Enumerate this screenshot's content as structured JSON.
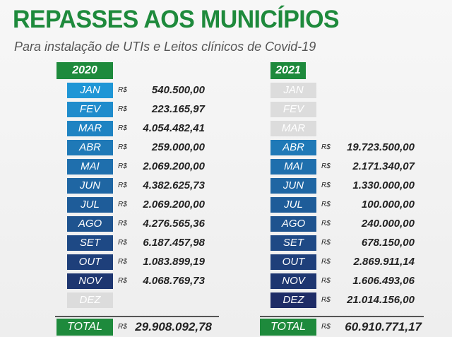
{
  "header": {
    "title": "REPASSES AOS MUNICÍPIOS",
    "subtitle": "Para instalação de UTIs e Leitos clínicos de Covid-19"
  },
  "currency": "R$",
  "tables": [
    {
      "year": "2020",
      "rows": [
        {
          "month": "JAN",
          "value": "540.500,00"
        },
        {
          "month": "FEV",
          "value": "223.165,97"
        },
        {
          "month": "MAR",
          "value": "4.054.482,41"
        },
        {
          "month": "ABR",
          "value": "259.000,00"
        },
        {
          "month": "MAI",
          "value": "2.069.200,00"
        },
        {
          "month": "JUN",
          "value": "4.382.625,73"
        },
        {
          "month": "JUL",
          "value": "2.069.200,00"
        },
        {
          "month": "AGO",
          "value": "4.276.565,36"
        },
        {
          "month": "SET",
          "value": "6.187.457,98"
        },
        {
          "month": "OUT",
          "value": "1.083.899,19"
        },
        {
          "month": "NOV",
          "value": "4.068.769,73"
        },
        {
          "month": "DEZ"
        }
      ],
      "total_label": "TOTAL",
      "total": "29.908.092,78"
    },
    {
      "year": "2021",
      "rows": [
        {
          "month": "JAN"
        },
        {
          "month": "FEV"
        },
        {
          "month": "MAR"
        },
        {
          "month": "ABR",
          "value": "19.723.500,00"
        },
        {
          "month": "MAI",
          "value": "2.171.340,07"
        },
        {
          "month": "JUN",
          "value": "1.330.000,00"
        },
        {
          "month": "JUL",
          "value": "100.000,00"
        },
        {
          "month": "AGO",
          "value": "240.000,00"
        },
        {
          "month": "SET",
          "value": "678.150,00"
        },
        {
          "month": "OUT",
          "value": "2.869.911,14"
        },
        {
          "month": "NOV",
          "value": "1.606.493,06"
        },
        {
          "month": "DEZ",
          "value": "21.014.156,00"
        }
      ],
      "total_label": "TOTAL",
      "total": "60.910.771,17"
    }
  ]
}
